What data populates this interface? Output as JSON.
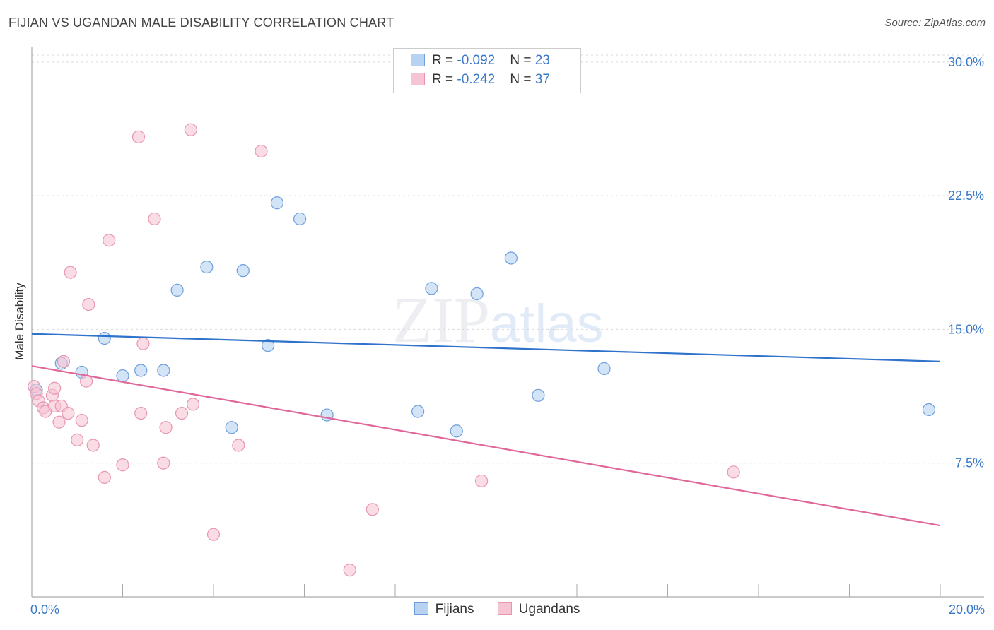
{
  "header": {
    "title": "FIJIAN VS UGANDAN MALE DISABILITY CORRELATION CHART",
    "source": "Source: ZipAtlas.com"
  },
  "watermark": {
    "zip": "ZIP",
    "atlas": "atlas"
  },
  "legend": {
    "rows": [
      {
        "r_label": "R = ",
        "r_value": "-0.092",
        "n_label": "N = ",
        "n_value": "23"
      },
      {
        "r_label": "R = ",
        "r_value": "-0.242",
        "n_label": "N = ",
        "n_value": "37"
      }
    ]
  },
  "bottom_legend": {
    "fijians": "Fijians",
    "ugandans": "Ugandans"
  },
  "colors": {
    "fijian_fill": "#b8d2f2",
    "fijian_stroke": "#6d9fdc",
    "fijian_line": "#2f72cc",
    "ugandan_fill": "#f7c4d4",
    "ugandan_stroke": "#e895b1",
    "ugandan_line": "#e0679a",
    "tick_text": "#3a78c8"
  },
  "chart_data": {
    "type": "scatter",
    "title": "FIJIAN VS UGANDAN MALE DISABILITY CORRELATION CHART",
    "xlabel": "",
    "ylabel": "Male Disability",
    "xlim": [
      0,
      20
    ],
    "ylim": [
      0,
      31.5
    ],
    "x_tick_labels": [
      {
        "value": 0,
        "label": "0.0%"
      },
      {
        "value": 20,
        "label": "20.0%"
      }
    ],
    "x_minor_ticks": [
      0,
      2,
      4,
      6,
      8,
      10,
      12,
      14,
      16,
      18,
      20
    ],
    "y_ticks": [
      {
        "value": 7.5,
        "label": "7.5%"
      },
      {
        "value": 15,
        "label": "15.0%"
      },
      {
        "value": 22.5,
        "label": "22.5%"
      },
      {
        "value": 30,
        "label": "30.0%"
      }
    ],
    "series": [
      {
        "name": "Fijians",
        "points": [
          [
            0.1,
            11.6
          ],
          [
            0.65,
            13.1
          ],
          [
            1.1,
            12.6
          ],
          [
            1.6,
            14.5
          ],
          [
            2.0,
            12.4
          ],
          [
            2.4,
            12.7
          ],
          [
            2.9,
            12.7
          ],
          [
            3.2,
            17.2
          ],
          [
            3.85,
            18.5
          ],
          [
            4.4,
            9.5
          ],
          [
            4.65,
            18.3
          ],
          [
            5.2,
            14.1
          ],
          [
            5.4,
            22.1
          ],
          [
            5.9,
            21.2
          ],
          [
            6.5,
            10.2
          ],
          [
            8.5,
            10.4
          ],
          [
            8.8,
            17.3
          ],
          [
            9.35,
            9.3
          ],
          [
            9.8,
            17.0
          ],
          [
            10.55,
            19.0
          ],
          [
            11.15,
            11.3
          ],
          [
            12.6,
            12.8
          ],
          [
            19.75,
            10.5
          ]
        ],
        "trend": {
          "x": [
            0,
            20
          ],
          "y": [
            14.75,
            13.2
          ]
        }
      },
      {
        "name": "Ugandans",
        "points": [
          [
            0.05,
            11.8
          ],
          [
            0.1,
            11.4
          ],
          [
            0.15,
            11.0
          ],
          [
            0.25,
            10.6
          ],
          [
            0.3,
            10.4
          ],
          [
            0.45,
            11.3
          ],
          [
            0.5,
            11.7
          ],
          [
            0.5,
            10.7
          ],
          [
            0.6,
            9.8
          ],
          [
            0.65,
            10.7
          ],
          [
            0.7,
            13.2
          ],
          [
            0.8,
            10.3
          ],
          [
            0.85,
            18.2
          ],
          [
            1.0,
            8.8
          ],
          [
            1.1,
            9.9
          ],
          [
            1.2,
            12.1
          ],
          [
            1.25,
            16.4
          ],
          [
            1.35,
            8.5
          ],
          [
            1.6,
            6.7
          ],
          [
            1.7,
            20.0
          ],
          [
            2.0,
            7.4
          ],
          [
            2.35,
            25.8
          ],
          [
            2.4,
            10.3
          ],
          [
            2.45,
            14.2
          ],
          [
            2.7,
            21.2
          ],
          [
            2.9,
            7.5
          ],
          [
            2.95,
            9.5
          ],
          [
            3.3,
            10.3
          ],
          [
            3.5,
            26.2
          ],
          [
            3.55,
            10.8
          ],
          [
            4.0,
            3.5
          ],
          [
            4.55,
            8.5
          ],
          [
            5.05,
            25.0
          ],
          [
            7.0,
            1.5
          ],
          [
            7.5,
            4.9
          ],
          [
            9.9,
            6.5
          ],
          [
            15.45,
            7.0
          ]
        ],
        "trend": {
          "x": [
            0,
            20
          ],
          "y": [
            12.95,
            4.0
          ]
        }
      }
    ],
    "extra_points_note": "",
    "grid": true,
    "legend_position": "top-center"
  }
}
